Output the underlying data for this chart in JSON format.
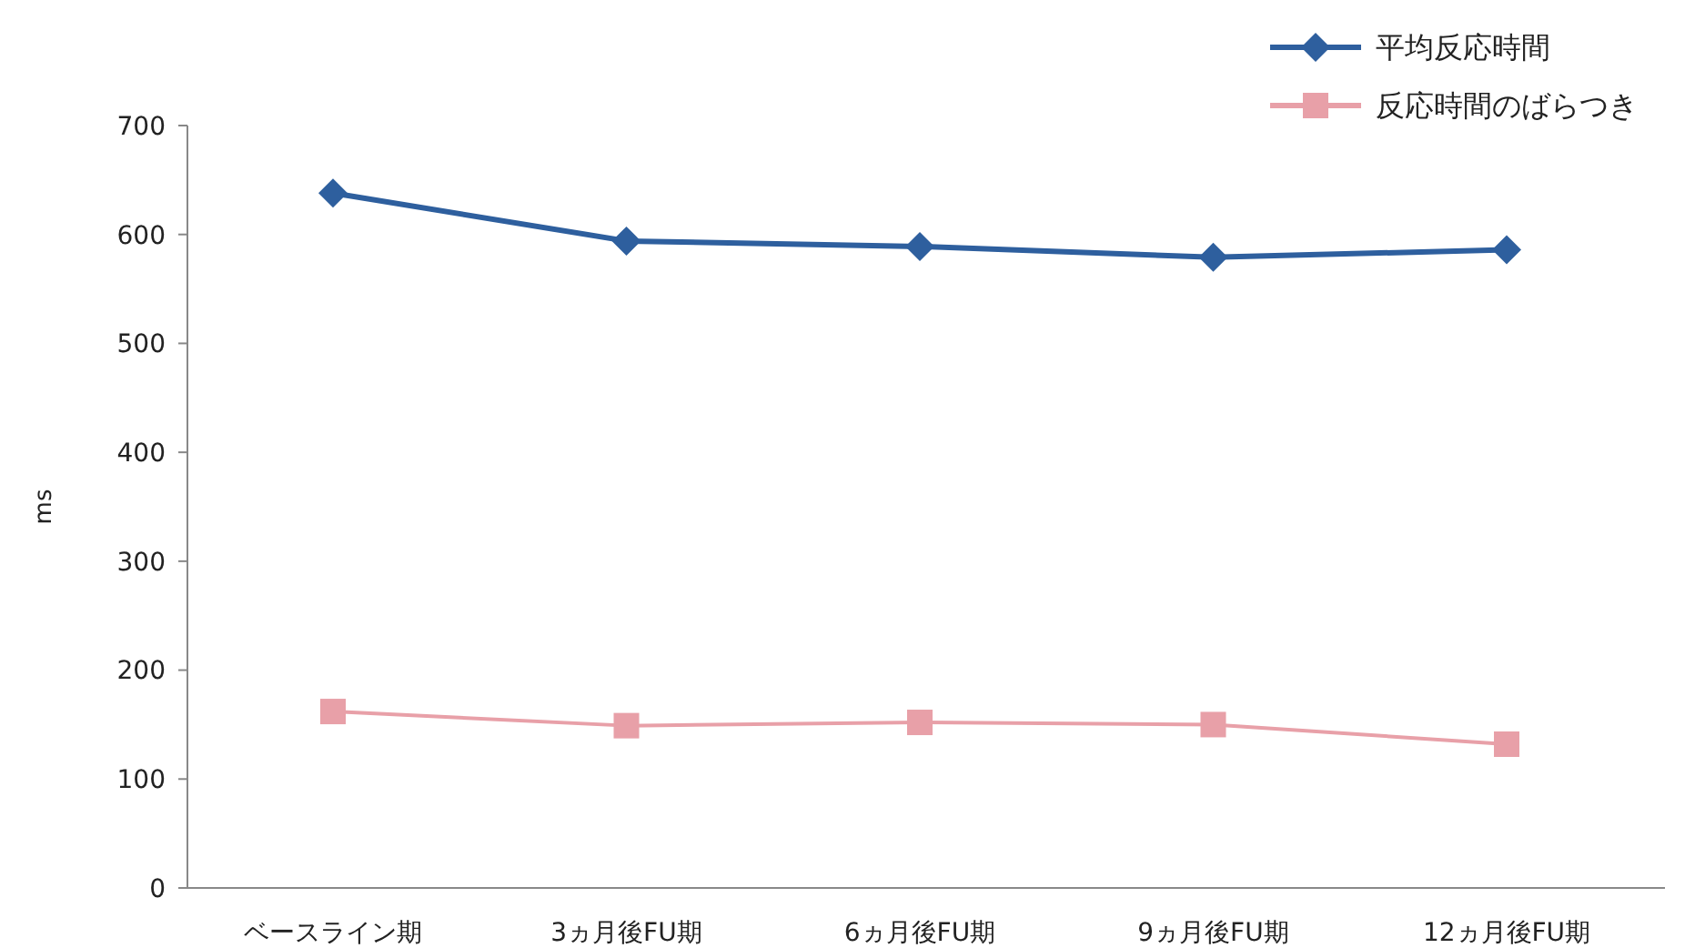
{
  "chart_data": {
    "type": "line",
    "ylabel": "ms",
    "categories": [
      "ベースライン期",
      "3ヵ月後FU期",
      "6ヵ月後FU期",
      "9ヵ月後FU期",
      "12ヵ月後FU期"
    ],
    "series": [
      {
        "name": "平均反応時間",
        "color": "#2e5f9e",
        "marker": "diamond",
        "values": [
          638,
          594,
          589,
          579,
          586
        ]
      },
      {
        "name": "反応時間のばらつき",
        "color": "#e8a0a8",
        "marker": "square",
        "values": [
          162,
          149,
          152,
          150,
          132
        ]
      }
    ],
    "ylim": [
      0,
      700
    ],
    "yticks": [
      0,
      100,
      200,
      300,
      400,
      500,
      600,
      700
    ],
    "grid": false,
    "legend": "top right",
    "line_style": "solid"
  }
}
